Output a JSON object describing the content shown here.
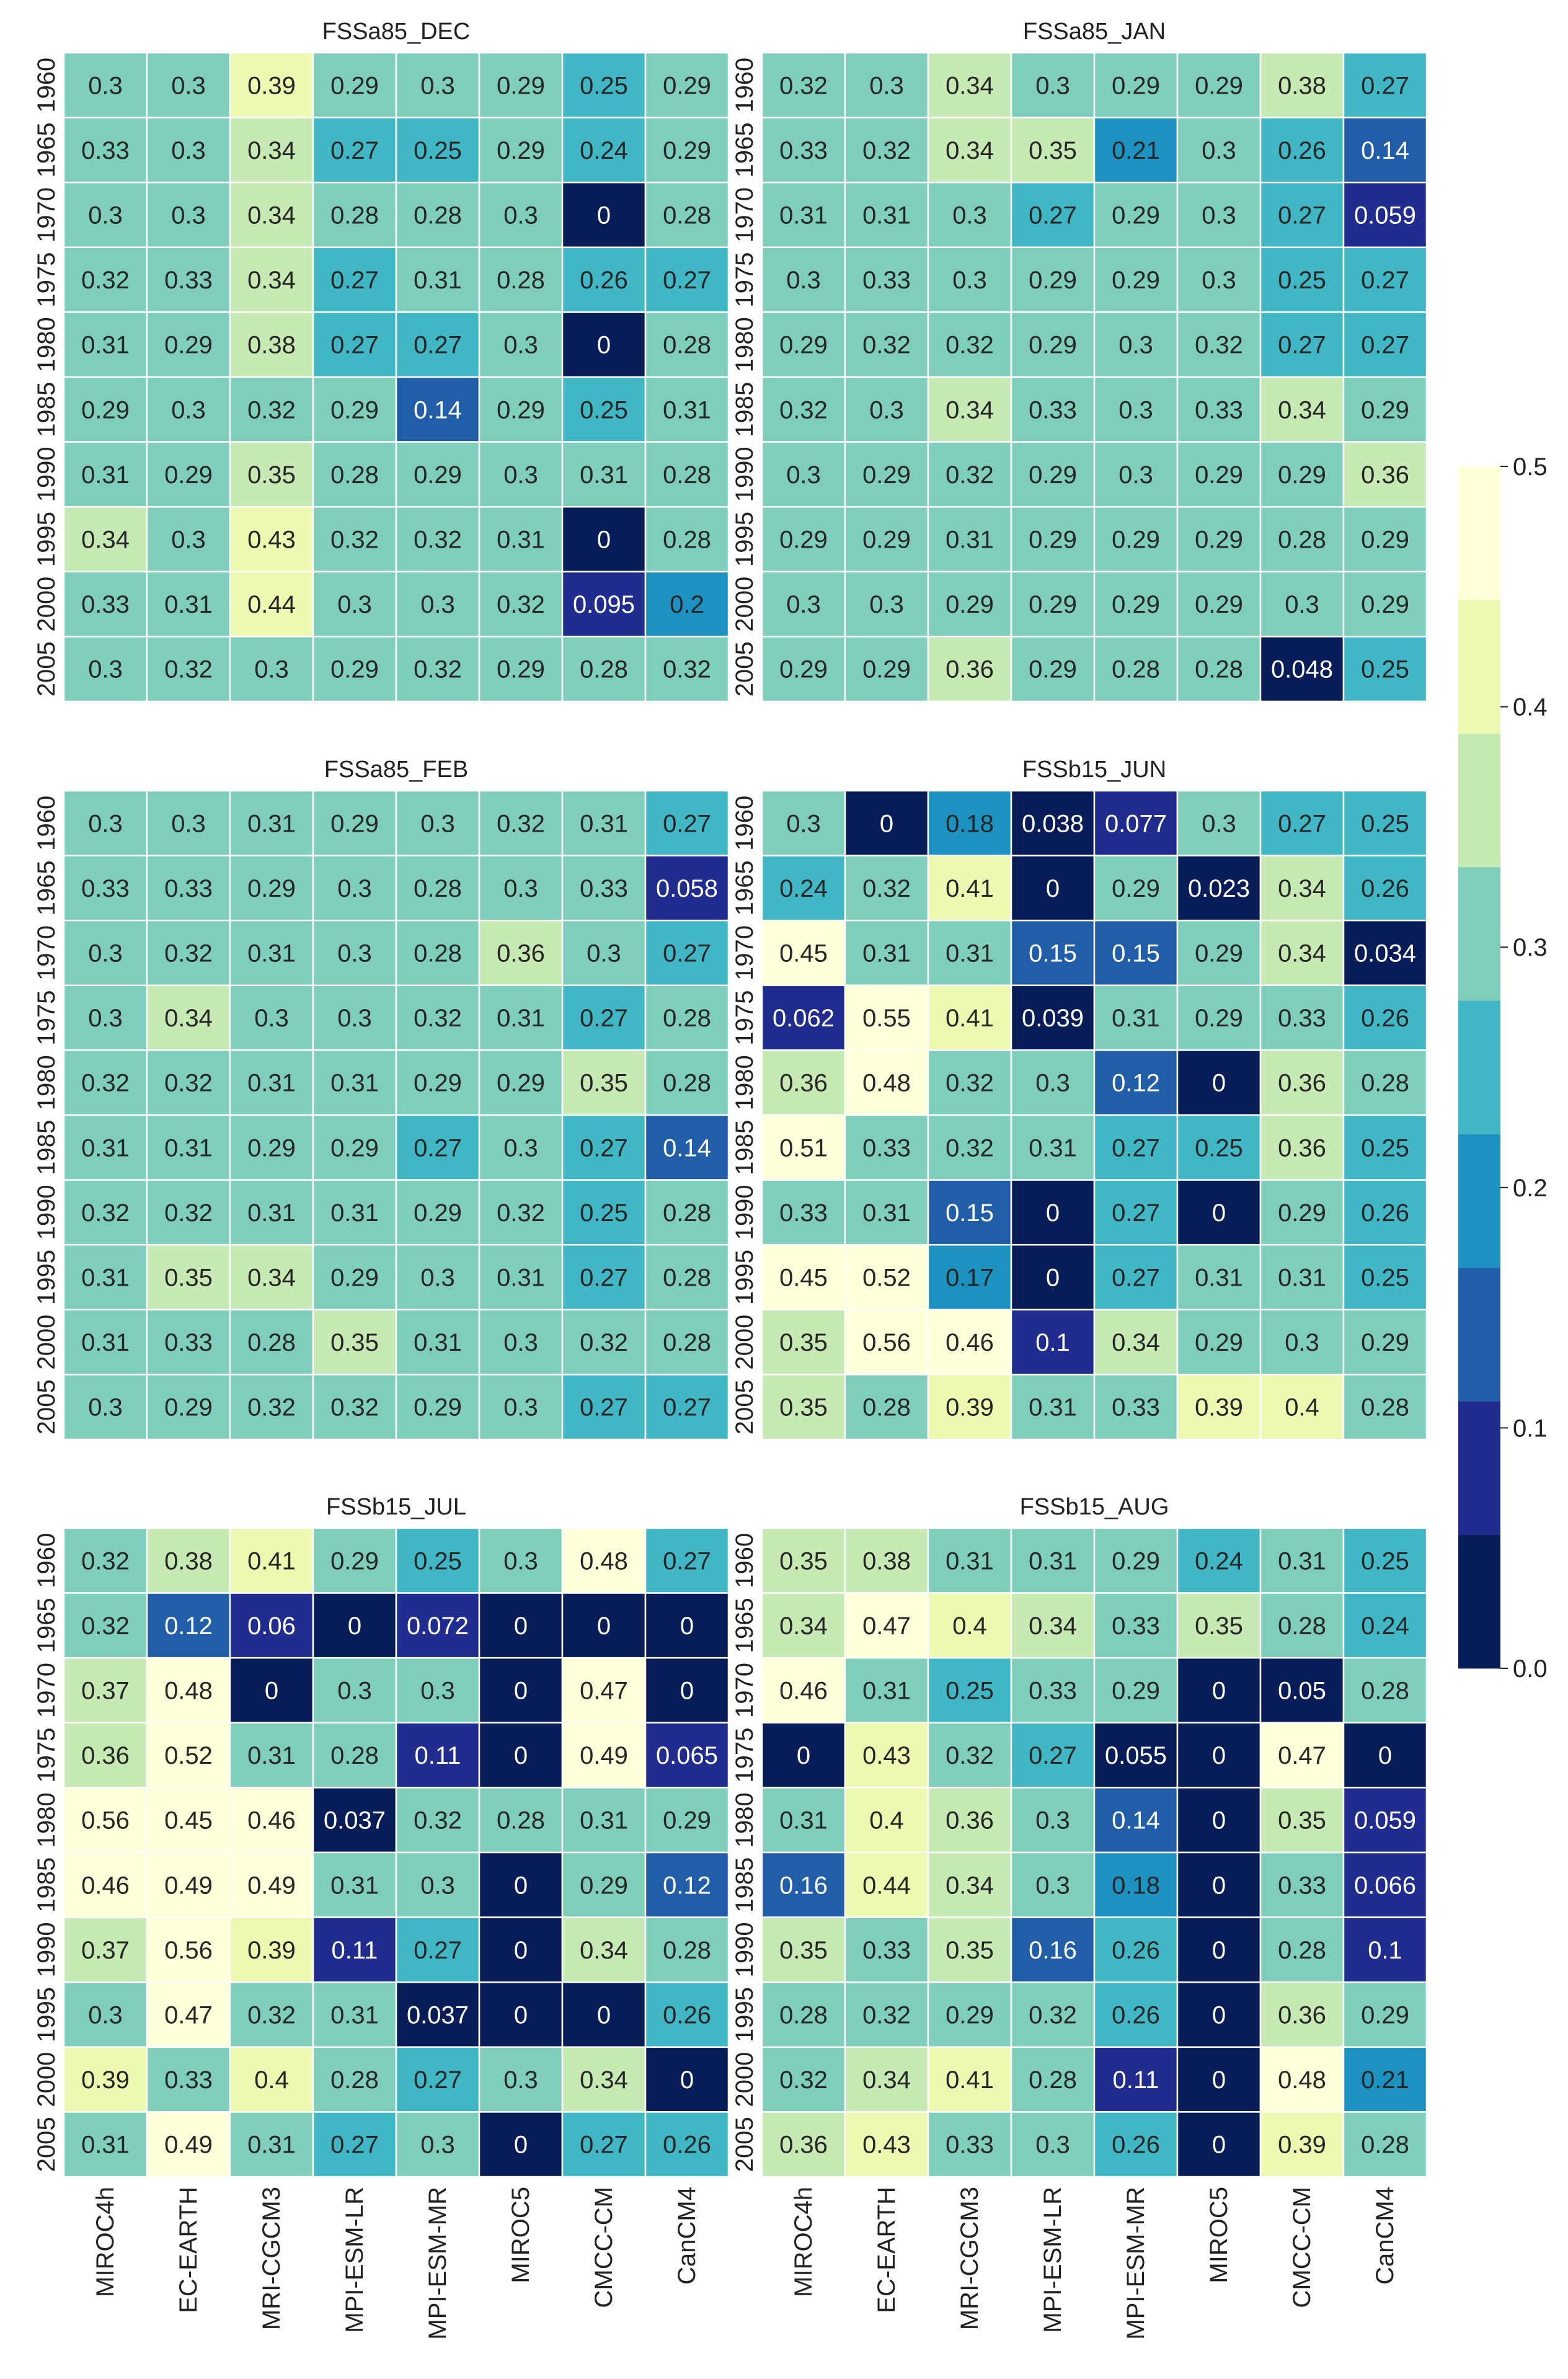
{
  "chart_data": {
    "type": "heatmap",
    "rows": [
      "1960",
      "1965",
      "1970",
      "1975",
      "1980",
      "1985",
      "1990",
      "1995",
      "2000",
      "2005"
    ],
    "columns": [
      "MIROC4h",
      "EC-EARTH",
      "MRI-CGCM3",
      "MPI-ESM-LR",
      "MPI-ESM-MR",
      "MIROC5",
      "CMCC-CM",
      "CanCM4"
    ],
    "panels": [
      {
        "title": "FSSa85_DEC",
        "values": [
          [
            "0.3",
            "0.3",
            "0.39",
            "0.29",
            "0.3",
            "0.29",
            "0.25",
            "0.29"
          ],
          [
            "0.33",
            "0.3",
            "0.34",
            "0.27",
            "0.25",
            "0.29",
            "0.24",
            "0.29"
          ],
          [
            "0.3",
            "0.3",
            "0.34",
            "0.28",
            "0.28",
            "0.3",
            "0",
            "0.28"
          ],
          [
            "0.32",
            "0.33",
            "0.34",
            "0.27",
            "0.31",
            "0.28",
            "0.26",
            "0.27"
          ],
          [
            "0.31",
            "0.29",
            "0.38",
            "0.27",
            "0.27",
            "0.3",
            "0",
            "0.28"
          ],
          [
            "0.29",
            "0.3",
            "0.32",
            "0.29",
            "0.14",
            "0.29",
            "0.25",
            "0.31"
          ],
          [
            "0.31",
            "0.29",
            "0.35",
            "0.28",
            "0.29",
            "0.3",
            "0.31",
            "0.28"
          ],
          [
            "0.34",
            "0.3",
            "0.43",
            "0.32",
            "0.32",
            "0.31",
            "0",
            "0.28"
          ],
          [
            "0.33",
            "0.31",
            "0.44",
            "0.3",
            "0.3",
            "0.32",
            "0.095",
            "0.2"
          ],
          [
            "0.3",
            "0.32",
            "0.3",
            "0.29",
            "0.32",
            "0.29",
            "0.28",
            "0.32"
          ]
        ]
      },
      {
        "title": "FSSa85_JAN",
        "values": [
          [
            "0.32",
            "0.3",
            "0.34",
            "0.3",
            "0.29",
            "0.29",
            "0.38",
            "0.27"
          ],
          [
            "0.33",
            "0.32",
            "0.34",
            "0.35",
            "0.21",
            "0.3",
            "0.26",
            "0.14"
          ],
          [
            "0.31",
            "0.31",
            "0.3",
            "0.27",
            "0.29",
            "0.3",
            "0.27",
            "0.059"
          ],
          [
            "0.3",
            "0.33",
            "0.3",
            "0.29",
            "0.29",
            "0.3",
            "0.25",
            "0.27"
          ],
          [
            "0.29",
            "0.32",
            "0.32",
            "0.29",
            "0.3",
            "0.32",
            "0.27",
            "0.27"
          ],
          [
            "0.32",
            "0.3",
            "0.34",
            "0.33",
            "0.3",
            "0.33",
            "0.34",
            "0.29"
          ],
          [
            "0.3",
            "0.29",
            "0.32",
            "0.29",
            "0.3",
            "0.29",
            "0.29",
            "0.36"
          ],
          [
            "0.29",
            "0.29",
            "0.31",
            "0.29",
            "0.29",
            "0.29",
            "0.28",
            "0.29"
          ],
          [
            "0.3",
            "0.3",
            "0.29",
            "0.29",
            "0.29",
            "0.29",
            "0.3",
            "0.29"
          ],
          [
            "0.29",
            "0.29",
            "0.36",
            "0.29",
            "0.28",
            "0.28",
            "0.048",
            "0.25"
          ]
        ]
      },
      {
        "title": "FSSa85_FEB",
        "values": [
          [
            "0.3",
            "0.3",
            "0.31",
            "0.29",
            "0.3",
            "0.32",
            "0.31",
            "0.27"
          ],
          [
            "0.33",
            "0.33",
            "0.29",
            "0.3",
            "0.28",
            "0.3",
            "0.33",
            "0.058"
          ],
          [
            "0.3",
            "0.32",
            "0.31",
            "0.3",
            "0.28",
            "0.36",
            "0.3",
            "0.27"
          ],
          [
            "0.3",
            "0.34",
            "0.3",
            "0.3",
            "0.32",
            "0.31",
            "0.27",
            "0.28"
          ],
          [
            "0.32",
            "0.32",
            "0.31",
            "0.31",
            "0.29",
            "0.29",
            "0.35",
            "0.28"
          ],
          [
            "0.31",
            "0.31",
            "0.29",
            "0.29",
            "0.27",
            "0.3",
            "0.27",
            "0.14"
          ],
          [
            "0.32",
            "0.32",
            "0.31",
            "0.31",
            "0.29",
            "0.32",
            "0.25",
            "0.28"
          ],
          [
            "0.31",
            "0.35",
            "0.34",
            "0.29",
            "0.3",
            "0.31",
            "0.27",
            "0.28"
          ],
          [
            "0.31",
            "0.33",
            "0.28",
            "0.35",
            "0.31",
            "0.3",
            "0.32",
            "0.28"
          ],
          [
            "0.3",
            "0.29",
            "0.32",
            "0.32",
            "0.29",
            "0.3",
            "0.27",
            "0.27"
          ]
        ]
      },
      {
        "title": "FSSb15_JUN",
        "values": [
          [
            "0.3",
            "0",
            "0.18",
            "0.038",
            "0.077",
            "0.3",
            "0.27",
            "0.25"
          ],
          [
            "0.24",
            "0.32",
            "0.41",
            "0",
            "0.29",
            "0.023",
            "0.34",
            "0.26"
          ],
          [
            "0.45",
            "0.31",
            "0.31",
            "0.15",
            "0.15",
            "0.29",
            "0.34",
            "0.034"
          ],
          [
            "0.062",
            "0.55",
            "0.41",
            "0.039",
            "0.31",
            "0.29",
            "0.33",
            "0.26"
          ],
          [
            "0.36",
            "0.48",
            "0.32",
            "0.3",
            "0.12",
            "0",
            "0.36",
            "0.28"
          ],
          [
            "0.51",
            "0.33",
            "0.32",
            "0.31",
            "0.27",
            "0.25",
            "0.36",
            "0.25"
          ],
          [
            "0.33",
            "0.31",
            "0.15",
            "0",
            "0.27",
            "0",
            "0.29",
            "0.26"
          ],
          [
            "0.45",
            "0.52",
            "0.17",
            "0",
            "0.27",
            "0.31",
            "0.31",
            "0.25"
          ],
          [
            "0.35",
            "0.56",
            "0.46",
            "0.1",
            "0.34",
            "0.29",
            "0.3",
            "0.29"
          ],
          [
            "0.35",
            "0.28",
            "0.39",
            "0.31",
            "0.33",
            "0.39",
            "0.4",
            "0.28"
          ]
        ]
      },
      {
        "title": "FSSb15_JUL",
        "values": [
          [
            "0.32",
            "0.38",
            "0.41",
            "0.29",
            "0.25",
            "0.3",
            "0.48",
            "0.27"
          ],
          [
            "0.32",
            "0.12",
            "0.06",
            "0",
            "0.072",
            "0",
            "0",
            "0"
          ],
          [
            "0.37",
            "0.48",
            "0",
            "0.3",
            "0.3",
            "0",
            "0.47",
            "0"
          ],
          [
            "0.36",
            "0.52",
            "0.31",
            "0.28",
            "0.11",
            "0",
            "0.49",
            "0.065"
          ],
          [
            "0.56",
            "0.45",
            "0.46",
            "0.037",
            "0.32",
            "0.28",
            "0.31",
            "0.29"
          ],
          [
            "0.46",
            "0.49",
            "0.49",
            "0.31",
            "0.3",
            "0",
            "0.29",
            "0.12"
          ],
          [
            "0.37",
            "0.56",
            "0.39",
            "0.11",
            "0.27",
            "0",
            "0.34",
            "0.28"
          ],
          [
            "0.3",
            "0.47",
            "0.32",
            "0.31",
            "0.037",
            "0",
            "0",
            "0.26"
          ],
          [
            "0.39",
            "0.33",
            "0.4",
            "0.28",
            "0.27",
            "0.3",
            "0.34",
            "0"
          ],
          [
            "0.31",
            "0.49",
            "0.31",
            "0.27",
            "0.3",
            "0",
            "0.27",
            "0.26"
          ]
        ]
      },
      {
        "title": "FSSb15_AUG",
        "values": [
          [
            "0.35",
            "0.38",
            "0.31",
            "0.31",
            "0.29",
            "0.24",
            "0.31",
            "0.25"
          ],
          [
            "0.34",
            "0.47",
            "0.4",
            "0.34",
            "0.33",
            "0.35",
            "0.28",
            "0.24"
          ],
          [
            "0.46",
            "0.31",
            "0.25",
            "0.33",
            "0.29",
            "0",
            "0.05",
            "0.28"
          ],
          [
            "0",
            "0.43",
            "0.32",
            "0.27",
            "0.055",
            "0",
            "0.47",
            "0"
          ],
          [
            "0.31",
            "0.4",
            "0.36",
            "0.3",
            "0.14",
            "0",
            "0.35",
            "0.059"
          ],
          [
            "0.16",
            "0.44",
            "0.34",
            "0.3",
            "0.18",
            "0",
            "0.33",
            "0.066"
          ],
          [
            "0.35",
            "0.33",
            "0.35",
            "0.16",
            "0.26",
            "0",
            "0.28",
            "0.1"
          ],
          [
            "0.28",
            "0.32",
            "0.29",
            "0.32",
            "0.26",
            "0",
            "0.36",
            "0.29"
          ],
          [
            "0.32",
            "0.34",
            "0.41",
            "0.28",
            "0.11",
            "0",
            "0.48",
            "0.21"
          ],
          [
            "0.36",
            "0.43",
            "0.33",
            "0.3",
            "0.26",
            "0",
            "0.39",
            "0.28"
          ]
        ]
      }
    ],
    "colorbar": {
      "range": [
        0.0,
        0.5
      ],
      "ticks": [
        "0.0",
        "0.1",
        "0.2",
        "0.3",
        "0.4",
        "0.5"
      ],
      "colors": [
        "#081d58",
        "#202d8e",
        "#225ea8",
        "#1d91c0",
        "#41b6c4",
        "#7fcdbb",
        "#c7e9b4",
        "#edf8b1",
        "#ffffd9"
      ]
    },
    "legend_placement": "right",
    "grid": false
  }
}
